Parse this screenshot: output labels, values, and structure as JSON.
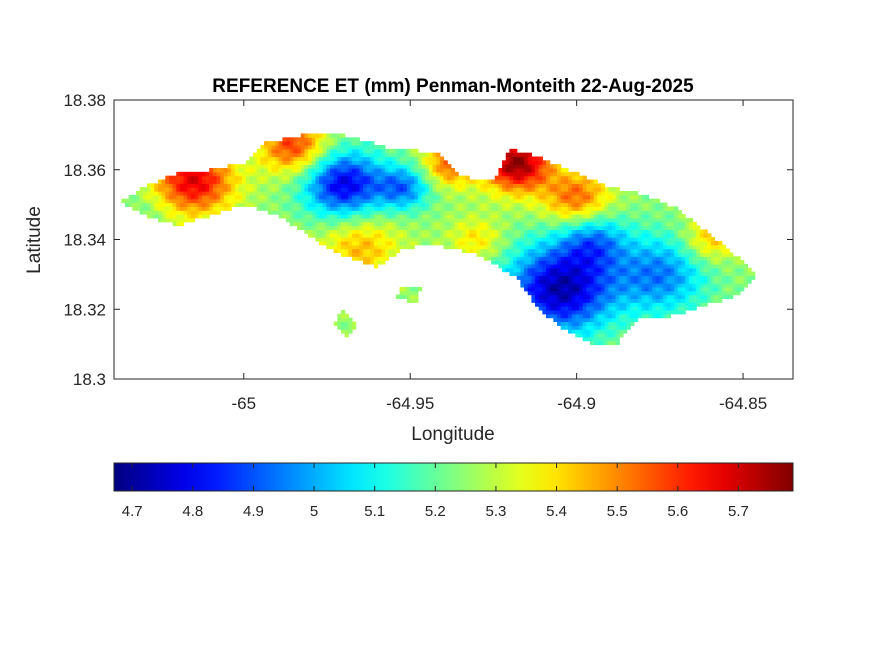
{
  "chart_data": {
    "type": "heatmap",
    "title": "REFERENCE ET (mm) Penman-Monteith 22-Aug-2025",
    "xlabel": "Longitude",
    "ylabel": "Latitude",
    "xlim": [
      -65.039,
      -64.835
    ],
    "ylim": [
      18.3,
      18.38
    ],
    "xticks": [
      -65,
      -64.95,
      -64.9,
      -64.85
    ],
    "xtick_labels": [
      "-65",
      "-64.95",
      "-64.9",
      "-64.85"
    ],
    "yticks": [
      18.3,
      18.32,
      18.34,
      18.36,
      18.38
    ],
    "ytick_labels": [
      "18.3",
      "18.32",
      "18.34",
      "18.36",
      "18.38"
    ],
    "colormap": "jet",
    "colorbar": {
      "location": "below",
      "clim": [
        4.67,
        5.79
      ],
      "ticks": [
        4.7,
        4.8,
        4.9,
        5,
        5.1,
        5.2,
        5.3,
        5.4,
        5.5,
        5.6,
        5.7
      ],
      "tick_labels": [
        "4.7",
        "4.8",
        "4.9",
        "5",
        "5.1",
        "5.2",
        "5.3",
        "5.4",
        "5.5",
        "5.6",
        "5.7"
      ]
    },
    "grid": false,
    "field": {
      "base_value": 5.25,
      "hotspots": [
        {
          "lon": -64.97,
          "lat": 18.356,
          "value": 4.78,
          "radius": 0.012
        },
        {
          "lon": -64.952,
          "lat": 18.355,
          "value": 4.95,
          "radius": 0.008
        },
        {
          "lon": -64.905,
          "lat": 18.326,
          "value": 4.72,
          "radius": 0.016
        },
        {
          "lon": -64.875,
          "lat": 18.33,
          "value": 4.95,
          "radius": 0.014
        },
        {
          "lon": -64.895,
          "lat": 18.34,
          "value": 5.0,
          "radius": 0.01
        },
        {
          "lon": -64.918,
          "lat": 18.362,
          "value": 5.78,
          "radius": 0.01
        },
        {
          "lon": -65.015,
          "lat": 18.357,
          "value": 5.68,
          "radius": 0.012
        },
        {
          "lon": -64.985,
          "lat": 18.367,
          "value": 5.6,
          "radius": 0.01
        },
        {
          "lon": -64.938,
          "lat": 18.362,
          "value": 5.55,
          "radius": 0.008
        },
        {
          "lon": -64.9,
          "lat": 18.352,
          "value": 5.55,
          "radius": 0.01
        },
        {
          "lon": -64.965,
          "lat": 18.338,
          "value": 5.45,
          "radius": 0.012
        },
        {
          "lon": -64.93,
          "lat": 18.34,
          "value": 5.4,
          "radius": 0.008
        },
        {
          "lon": -64.86,
          "lat": 18.34,
          "value": 5.45,
          "radius": 0.008
        },
        {
          "lon": -65.03,
          "lat": 18.348,
          "value": 5.2,
          "radius": 0.008
        }
      ],
      "land_mask": [
        [
          [
            -65.037,
            18.351
          ],
          [
            -65.03,
            18.355
          ],
          [
            -65.02,
            18.359
          ],
          [
            -65.01,
            18.36
          ],
          [
            -65.0,
            18.362
          ],
          [
            -64.993,
            18.368
          ],
          [
            -64.982,
            18.37
          ],
          [
            -64.97,
            18.37
          ],
          [
            -64.955,
            18.366
          ],
          [
            -64.942,
            18.365
          ],
          [
            -64.935,
            18.358
          ],
          [
            -64.925,
            18.357
          ],
          [
            -64.92,
            18.366
          ],
          [
            -64.912,
            18.364
          ],
          [
            -64.9,
            18.359
          ],
          [
            -64.89,
            18.355
          ],
          [
            -64.88,
            18.353
          ],
          [
            -64.87,
            18.349
          ],
          [
            -64.862,
            18.343
          ],
          [
            -64.853,
            18.336
          ],
          [
            -64.846,
            18.33
          ],
          [
            -64.852,
            18.324
          ],
          [
            -64.862,
            18.321
          ],
          [
            -64.872,
            18.318
          ],
          [
            -64.882,
            18.317
          ],
          [
            -64.888,
            18.31
          ],
          [
            -64.895,
            18.31
          ],
          [
            -64.905,
            18.315
          ],
          [
            -64.912,
            18.321
          ],
          [
            -64.918,
            18.329
          ],
          [
            -64.93,
            18.336
          ],
          [
            -64.945,
            18.339
          ],
          [
            -64.953,
            18.337
          ],
          [
            -64.96,
            18.332
          ],
          [
            -64.972,
            18.336
          ],
          [
            -64.98,
            18.341
          ],
          [
            -64.99,
            18.347
          ],
          [
            -65.0,
            18.35
          ],
          [
            -65.01,
            18.347
          ],
          [
            -65.02,
            18.344
          ],
          [
            -65.03,
            18.347
          ]
        ],
        [
          [
            -64.953,
            18.327
          ],
          [
            -64.947,
            18.326
          ],
          [
            -64.948,
            18.322
          ],
          [
            -64.954,
            18.323
          ]
        ],
        [
          [
            -64.97,
            18.32
          ],
          [
            -64.966,
            18.316
          ],
          [
            -64.969,
            18.312
          ],
          [
            -64.973,
            18.316
          ]
        ]
      ]
    }
  }
}
